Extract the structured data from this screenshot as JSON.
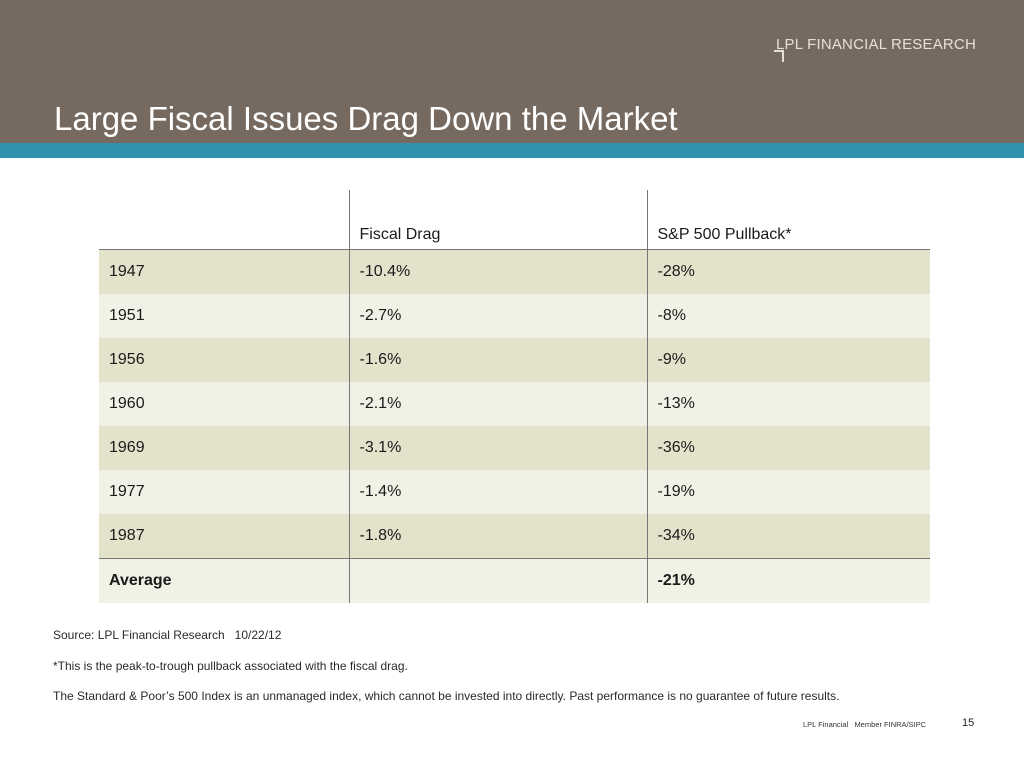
{
  "header": {
    "brand": "LPL FINANCIAL RESEARCH",
    "title": "Large Fiscal Issues Drag Down the Market",
    "colors": {
      "band": "#766a60",
      "stripe": "#2f93ae"
    }
  },
  "table": {
    "columns": [
      "",
      "Fiscal Drag",
      "S&P 500 Pullback*"
    ],
    "rows": [
      [
        "1947",
        "-10.4%",
        "-28%"
      ],
      [
        "1951",
        "-2.7%",
        "-8%"
      ],
      [
        "1956",
        "-1.6%",
        "-9%"
      ],
      [
        "1960",
        "-2.1%",
        "-13%"
      ],
      [
        "1969",
        "-3.1%",
        "-36%"
      ],
      [
        "1977",
        "-1.4%",
        "-19%"
      ],
      [
        "1987",
        "-1.8%",
        "-34%"
      ]
    ],
    "average": [
      "Average",
      "",
      "-21%"
    ]
  },
  "notes": {
    "source": "Source: LPL Financial Research",
    "date": "10/22/12",
    "footnote": "*This is the peak-to-trough pullback associated with the fiscal drag.",
    "disclaimer": "The Standard & Poor’s 500 Index is an unmanaged index, which cannot be invested into directly. Past performance is no guarantee of future results."
  },
  "footer": {
    "company": "LPL Financial",
    "member": "Member FINRA/SIPC",
    "page": "15"
  }
}
